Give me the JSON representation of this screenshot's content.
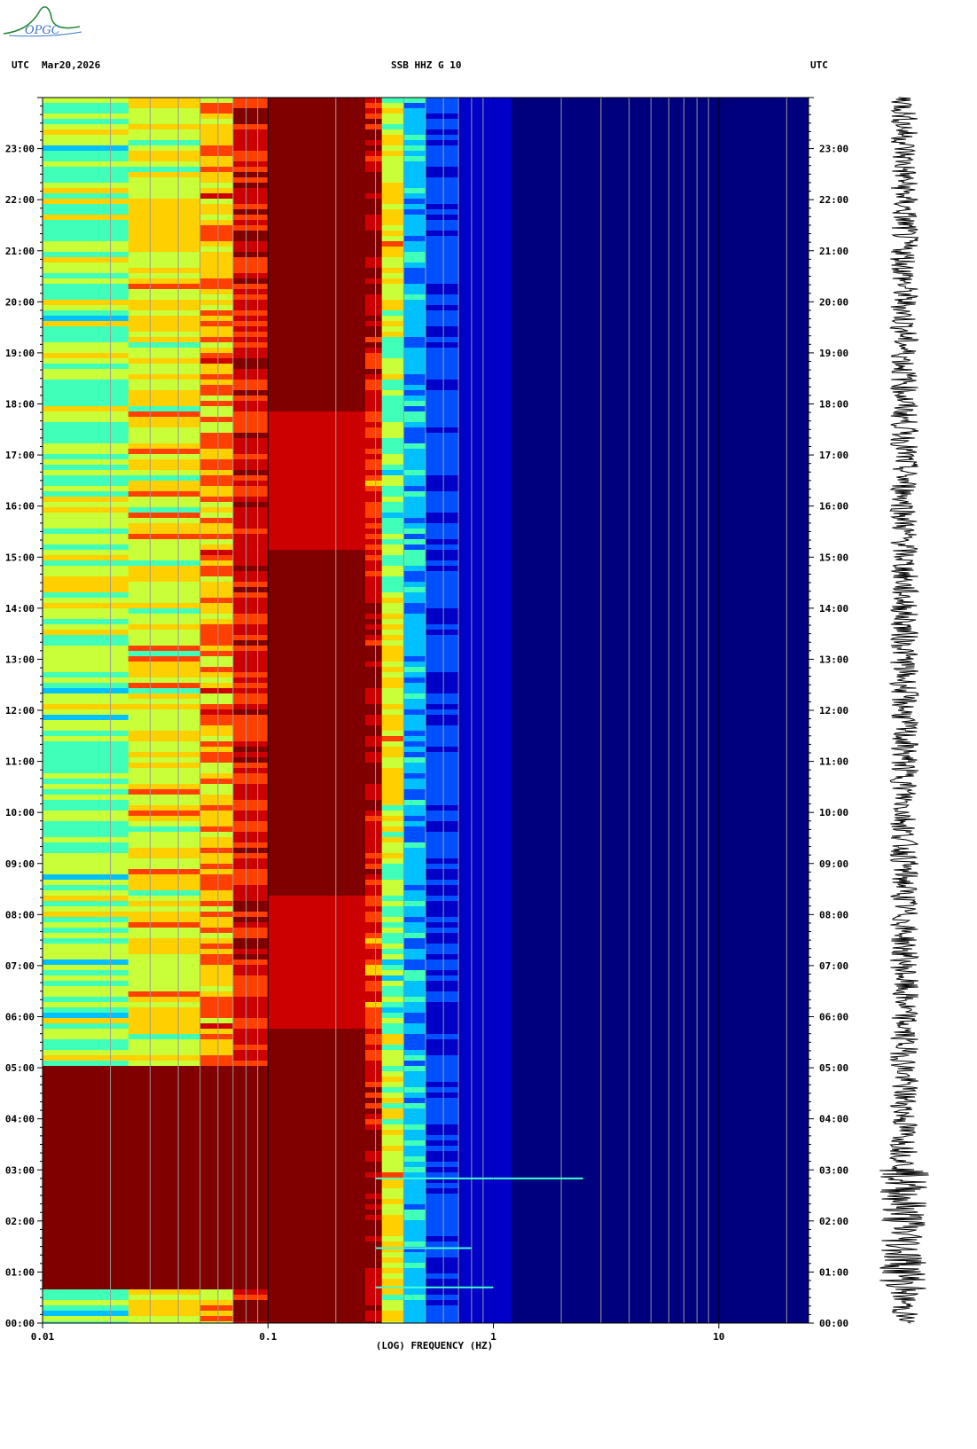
{
  "header": {
    "left_label": "UTC",
    "date": "Mar20,2026",
    "station": "SSB HHZ G 10",
    "right_label": "UTC",
    "logo_text": "OPGC"
  },
  "chart_data": {
    "type": "heatmap",
    "title": "SSB HHZ G 10",
    "xlabel": "(LOG) FREQUENCY (HZ)",
    "x_scale": "log",
    "xlim": [
      0.01,
      25
    ],
    "x_tick_labels": [
      "0.01",
      "0.1",
      "1",
      "10"
    ],
    "x_ticks": [
      0.01,
      0.1,
      1,
      10
    ],
    "ylim": [
      "00:00",
      "24:00"
    ],
    "y_tick_labels": [
      "00:00",
      "01:00",
      "02:00",
      "03:00",
      "04:00",
      "05:00",
      "06:00",
      "07:00",
      "08:00",
      "09:00",
      "10:00",
      "11:00",
      "12:00",
      "13:00",
      "14:00",
      "15:00",
      "16:00",
      "17:00",
      "18:00",
      "19:00",
      "20:00",
      "21:00",
      "22:00",
      "23:00"
    ],
    "colorscale": [
      "#00007f",
      "#0000c8",
      "#0050ff",
      "#00c0ff",
      "#40ffb8",
      "#c8ff38",
      "#ffd000",
      "#ff4000",
      "#cc0000",
      "#800000"
    ],
    "grid_frequencies": [
      0.02,
      0.03,
      0.04,
      0.05,
      0.06,
      0.07,
      0.08,
      0.09,
      0.2,
      0.3,
      0.4,
      0.5,
      0.6,
      0.7,
      0.8,
      0.9,
      2,
      3,
      4,
      5,
      6,
      7,
      8,
      9,
      20
    ],
    "events": [
      {
        "time": "02:50",
        "max_freq": 2.5
      },
      {
        "time": "00:42",
        "max_freq": 1.0
      },
      {
        "time": "01:28",
        "max_freq": 0.8
      }
    ],
    "seismogram": {
      "trace": "SSB HHZ",
      "high_amplitude_window": [
        "00:40",
        "03:00"
      ]
    }
  }
}
